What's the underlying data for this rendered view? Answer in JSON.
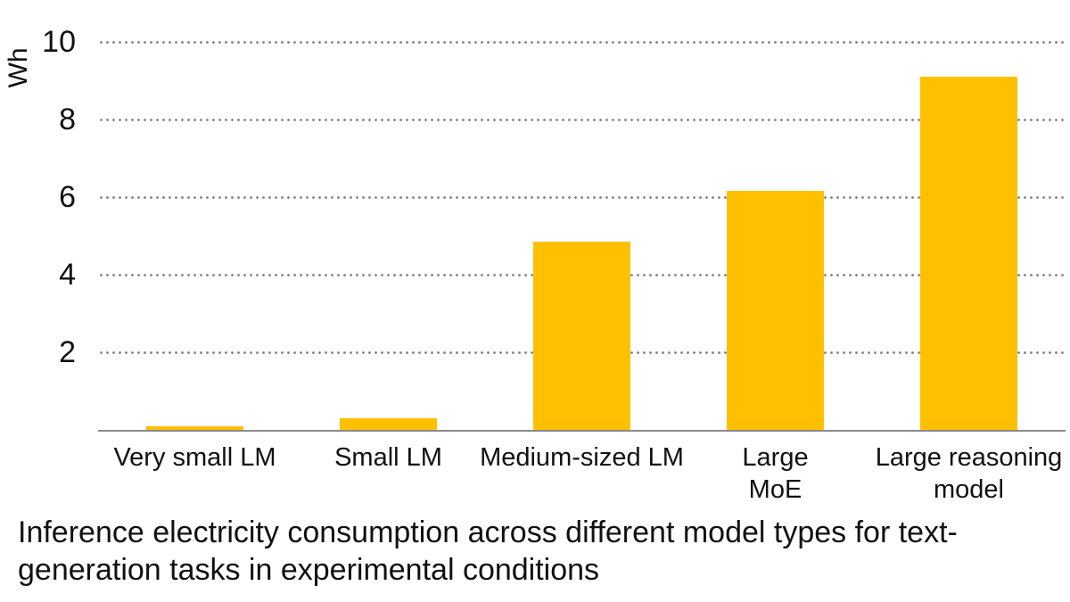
{
  "figure": {
    "caption_line1": "Inference electricity consumption across different model types for text-",
    "caption_line2": "generation tasks in experimental conditions"
  },
  "chart_data": {
    "type": "bar",
    "title": "",
    "ylabel": "Wh",
    "xlabel": "",
    "categories": [
      "Very small LM",
      "Small LM",
      "Medium-sized LM",
      "Large\nMoE",
      "Large reasoning\nmodel"
    ],
    "values": [
      0.1,
      0.3,
      4.85,
      6.15,
      9.1
    ],
    "ylim": [
      0,
      10
    ],
    "yticks": [
      2,
      4,
      6,
      8,
      10
    ],
    "grid": "horizontal-dotted",
    "legend": "none",
    "bar_color": "#FFC000",
    "axis_color": "#8A8A8A",
    "gridline_color": "#828282",
    "text_color": "#111111"
  }
}
